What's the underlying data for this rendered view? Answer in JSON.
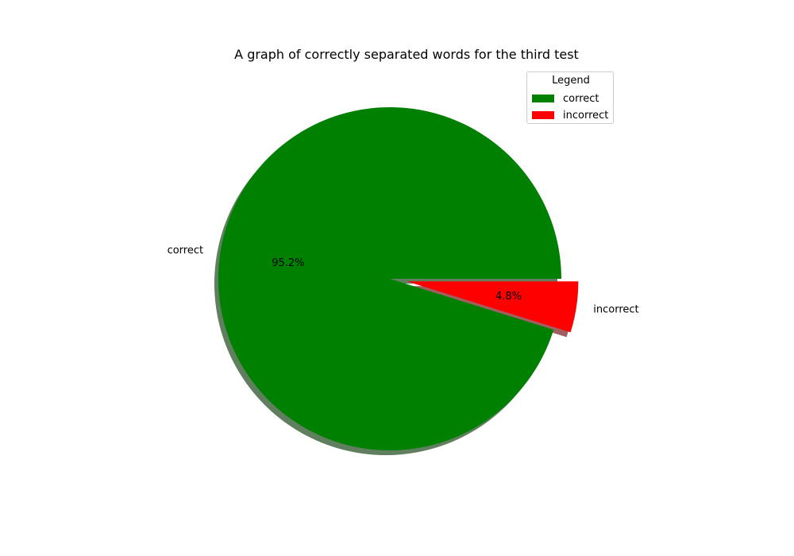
{
  "chart_data": {
    "type": "pie",
    "title": "A graph of correctly separated words for the third test",
    "legend": {
      "title": "Legend",
      "placement": "top-right"
    },
    "slices": [
      {
        "label": "correct",
        "value": 95.2,
        "pct_label": "95.2%",
        "color": "#008000",
        "explode": false
      },
      {
        "label": "incorrect",
        "value": 4.8,
        "pct_label": "4.8%",
        "color": "#ff0000",
        "explode": true
      }
    ],
    "shadow": true
  }
}
